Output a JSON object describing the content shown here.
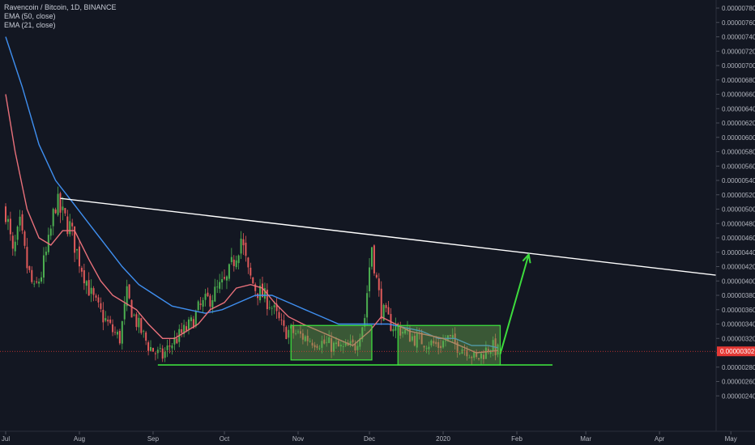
{
  "legend": {
    "symbol": "Ravencoin / Bitcoin, 1D, BINANCE",
    "ema50": "EMA (50, close)",
    "ema21": "EMA (21, close)"
  },
  "colors": {
    "background": "#131722",
    "up": "#4caf50",
    "down": "#e05a5a",
    "ema50": "#3f8ff0",
    "ema21": "#e8707a",
    "trendline": "#ffffff",
    "support": "#3ddc3d",
    "box_fill": "#6aa84f",
    "price_tag": "#e53935",
    "axis_text": "#b2b5be"
  },
  "chart_data": {
    "type": "candlestick",
    "title": "Ravencoin / Bitcoin, 1D, BINANCE",
    "y_ticks": [
      "0.00000240",
      "0.00000260",
      "0.00000280",
      "0.00000300",
      "0.00000320",
      "0.00000340",
      "0.00000360",
      "0.00000380",
      "0.00000400",
      "0.00000420",
      "0.00000440",
      "0.00000460",
      "0.00000480",
      "0.00000500",
      "0.00000520",
      "0.00000540",
      "0.00000560",
      "0.00000580",
      "0.00000600",
      "0.00000620",
      "0.00000640",
      "0.00000660",
      "0.00000680",
      "0.00000700",
      "0.00000720",
      "0.00000740",
      "0.00000760",
      "0.00000780"
    ],
    "x_ticks": [
      "Jul",
      "Aug",
      "Sep",
      "Oct",
      "Nov",
      "Dec",
      "2020",
      "Feb",
      "Mar",
      "Apr",
      "May"
    ],
    "ylim": [
      2.31e-06,
      7.9e-06
    ],
    "current_price": "0.00000302",
    "close_path": [
      [
        "Jul 1",
        5e-06
      ],
      [
        "Jul 4",
        4.35e-06
      ],
      [
        "Jul 7",
        4.75e-06
      ],
      [
        "Jul 10",
        4.2e-06
      ],
      [
        "Jul 13",
        3.85e-06
      ],
      [
        "Jul 16",
        4.1e-06
      ],
      [
        "Jul 19",
        4.5e-06
      ],
      [
        "Jul 22",
        5.1e-06
      ],
      [
        "Jul 25",
        4.9e-06
      ],
      [
        "Jul 28",
        4.75e-06
      ],
      [
        "Jul 31",
        4.4e-06
      ],
      [
        "Aug 3",
        4.1e-06
      ],
      [
        "Aug 6",
        3.8e-06
      ],
      [
        "Aug 9",
        3.6e-06
      ],
      [
        "Aug 12",
        3.45e-06
      ],
      [
        "Aug 15",
        3.3e-06
      ],
      [
        "Aug 18",
        3.2e-06
      ],
      [
        "Aug 21",
        3.8e-06
      ],
      [
        "Aug 24",
        3.5e-06
      ],
      [
        "Aug 27",
        3.3e-06
      ],
      [
        "Aug 30",
        3.1e-06
      ],
      [
        "Sep 2",
        3e-06
      ],
      [
        "Sep 5",
        2.95e-06
      ],
      [
        "Sep 8",
        3.1e-06
      ],
      [
        "Sep 11",
        3.2e-06
      ],
      [
        "Sep 14",
        3.3e-06
      ],
      [
        "Sep 17",
        3.4e-06
      ],
      [
        "Sep 20",
        3.6e-06
      ],
      [
        "Sep 23",
        3.7e-06
      ],
      [
        "Sep 26",
        3.8e-06
      ],
      [
        "Sep 29",
        3.9e-06
      ],
      [
        "Oct 2",
        4e-06
      ],
      [
        "Oct 5",
        4.3e-06
      ],
      [
        "Oct 8",
        4.6e-06
      ],
      [
        "Oct 11",
        4.1e-06
      ],
      [
        "Oct 14",
        3.9e-06
      ],
      [
        "Oct 17",
        3.8e-06
      ],
      [
        "Oct 20",
        3.7e-06
      ],
      [
        "Oct 23",
        3.5e-06
      ],
      [
        "Oct 26",
        3.3e-06
      ],
      [
        "Oct 29",
        3.3e-06
      ],
      [
        "Nov 1",
        3.25e-06
      ],
      [
        "Nov 5",
        3.2e-06
      ],
      [
        "Nov 10",
        3.15e-06
      ],
      [
        "Nov 15",
        3.1e-06
      ],
      [
        "Nov 20",
        3.05e-06
      ],
      [
        "Nov 25",
        3.1e-06
      ],
      [
        "Nov 29",
        3.5e-06
      ],
      [
        "Dec 1",
        4.2e-06
      ],
      [
        "Dec 2",
        4.5e-06
      ],
      [
        "Dec 4",
        4e-06
      ],
      [
        "Dec 6",
        3.6e-06
      ],
      [
        "Dec 10",
        3.4e-06
      ],
      [
        "Dec 15",
        3.3e-06
      ],
      [
        "Dec 20",
        3.2e-06
      ],
      [
        "Dec 25",
        3.15e-06
      ],
      [
        "Dec 30",
        3.1e-06
      ],
      [
        "Jan 3",
        3.2e-06
      ],
      [
        "Jan 7",
        3.1e-06
      ],
      [
        "Jan 11",
        3.05e-06
      ],
      [
        "Jan 15",
        2.9e-06
      ],
      [
        "Jan 18",
        3e-06
      ],
      [
        "Jan 21",
        3.1e-06
      ],
      [
        "Jan 24",
        3.02e-06
      ]
    ],
    "ema50_path": [
      [
        "Jul 1",
        7.4e-06
      ],
      [
        "Jul 8",
        6.7e-06
      ],
      [
        "Jul 15",
        5.9e-06
      ],
      [
        "Jul 22",
        5.4e-06
      ],
      [
        "Jul 29",
        5.1e-06
      ],
      [
        "Aug 5",
        4.8e-06
      ],
      [
        "Aug 12",
        4.5e-06
      ],
      [
        "Aug 19",
        4.2e-06
      ],
      [
        "Aug 26",
        3.95e-06
      ],
      [
        "Sep 2",
        3.8e-06
      ],
      [
        "Sep 9",
        3.65e-06
      ],
      [
        "Sep 16",
        3.6e-06
      ],
      [
        "Sep 23",
        3.55e-06
      ],
      [
        "Sep 30",
        3.6e-06
      ],
      [
        "Oct 7",
        3.7e-06
      ],
      [
        "Oct 14",
        3.8e-06
      ],
      [
        "Oct 21",
        3.8e-06
      ],
      [
        "Oct 28",
        3.7e-06
      ],
      [
        "Nov 4",
        3.6e-06
      ],
      [
        "Nov 11",
        3.5e-06
      ],
      [
        "Nov 18",
        3.4e-06
      ],
      [
        "Nov 25",
        3.4e-06
      ],
      [
        "Dec 2",
        3.4e-06
      ],
      [
        "Dec 9",
        3.4e-06
      ],
      [
        "Dec 16",
        3.35e-06
      ],
      [
        "Dec 23",
        3.3e-06
      ],
      [
        "Dec 30",
        3.2e-06
      ],
      [
        "Jan 6",
        3.2e-06
      ],
      [
        "Jan 13",
        3.1e-06
      ],
      [
        "Jan 20",
        3.1e-06
      ],
      [
        "Jan 24",
        3.07e-06
      ]
    ],
    "ema21_path": [
      [
        "Jul 1",
        6.6e-06
      ],
      [
        "Jul 5",
        5.8e-06
      ],
      [
        "Jul 10",
        5e-06
      ],
      [
        "Jul 15",
        4.6e-06
      ],
      [
        "Jul 20",
        4.5e-06
      ],
      [
        "Jul 25",
        4.7e-06
      ],
      [
        "Jul 30",
        4.7e-06
      ],
      [
        "Aug 5",
        4.3e-06
      ],
      [
        "Aug 10",
        4e-06
      ],
      [
        "Aug 15",
        3.8e-06
      ],
      [
        "Aug 20",
        3.7e-06
      ],
      [
        "Aug 25",
        3.6e-06
      ],
      [
        "Aug 30",
        3.4e-06
      ],
      [
        "Sep 5",
        3.2e-06
      ],
      [
        "Sep 10",
        3.2e-06
      ],
      [
        "Sep 15",
        3.3e-06
      ],
      [
        "Sep 20",
        3.4e-06
      ],
      [
        "Sep 25",
        3.6e-06
      ],
      [
        "Oct 1",
        3.7e-06
      ],
      [
        "Oct 6",
        3.9e-06
      ],
      [
        "Oct 12",
        3.95e-06
      ],
      [
        "Oct 17",
        3.9e-06
      ],
      [
        "Oct 22",
        3.7e-06
      ],
      [
        "Oct 28",
        3.5e-06
      ],
      [
        "Nov 3",
        3.4e-06
      ],
      [
        "Nov 10",
        3.3e-06
      ],
      [
        "Nov 17",
        3.2e-06
      ],
      [
        "Nov 24",
        3.1e-06
      ],
      [
        "Dec 1",
        3.3e-06
      ],
      [
        "Dec 6",
        3.5e-06
      ],
      [
        "Dec 12",
        3.4e-06
      ],
      [
        "Dec 18",
        3.3e-06
      ],
      [
        "Dec 25",
        3.25e-06
      ],
      [
        "Jan 1",
        3.2e-06
      ],
      [
        "Jan 8",
        3.1e-06
      ],
      [
        "Jan 15",
        3e-06
      ],
      [
        "Jan 24",
        3.03e-06
      ]
    ],
    "trendline": {
      "from": [
        "Jul 24",
        5.15e-06
      ],
      "to": [
        "May 13",
        4.01e-06
      ]
    },
    "support": {
      "from": [
        "Sep 3",
        2.83e-06
      ],
      "to": [
        "Feb 16",
        2.83e-06
      ],
      "level": 2.83e-06
    },
    "boxes": [
      {
        "from": "Oct 29",
        "to": "Dec 2",
        "low": 2.9e-06,
        "high": 3.38e-06
      },
      {
        "from": "Dec 13",
        "to": "Jan 25",
        "low": 2.83e-06,
        "high": 3.38e-06
      }
    ],
    "projection_arrow": {
      "from": [
        "Jan 25",
        2.98e-06
      ],
      "to": [
        "Feb 6",
        4.37e-06
      ]
    }
  }
}
